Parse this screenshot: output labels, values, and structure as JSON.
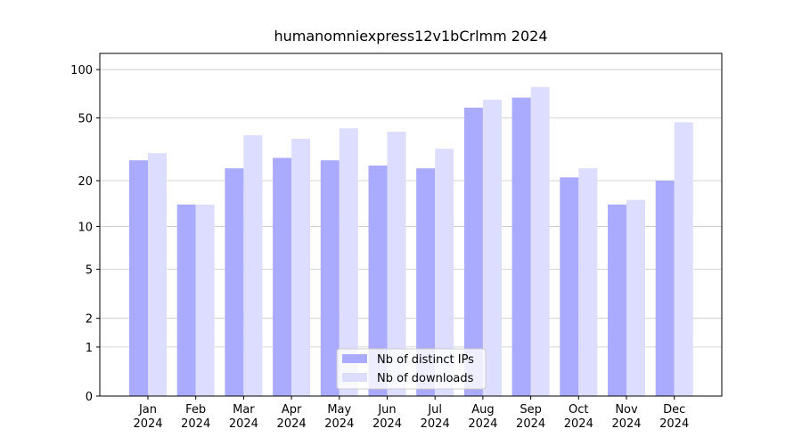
{
  "chart_data": {
    "type": "bar",
    "title": "humanomniexpress12v1bCrlmm 2024",
    "scale": "log1p",
    "categories": [
      "Jan 2024",
      "Feb 2024",
      "Mar 2024",
      "Apr 2024",
      "May 2024",
      "Jun 2024",
      "Jul 2024",
      "Aug 2024",
      "Sep 2024",
      "Oct 2024",
      "Nov 2024",
      "Dec 2024"
    ],
    "series": [
      {
        "name": "Nb of distinct IPs",
        "color": "#aaaaff",
        "values": [
          27,
          14,
          24,
          28,
          27,
          25,
          24,
          58,
          67,
          21,
          14,
          20
        ]
      },
      {
        "name": "Nb of downloads",
        "color": "#ddddff",
        "values": [
          30,
          14,
          39,
          37,
          43,
          41,
          32,
          65,
          78,
          24,
          15,
          47
        ]
      }
    ],
    "ylim": [
      0,
      126
    ],
    "yticks": [
      0,
      1,
      2,
      5,
      10,
      20,
      50,
      100
    ],
    "grid": true,
    "legend": "lower center"
  }
}
